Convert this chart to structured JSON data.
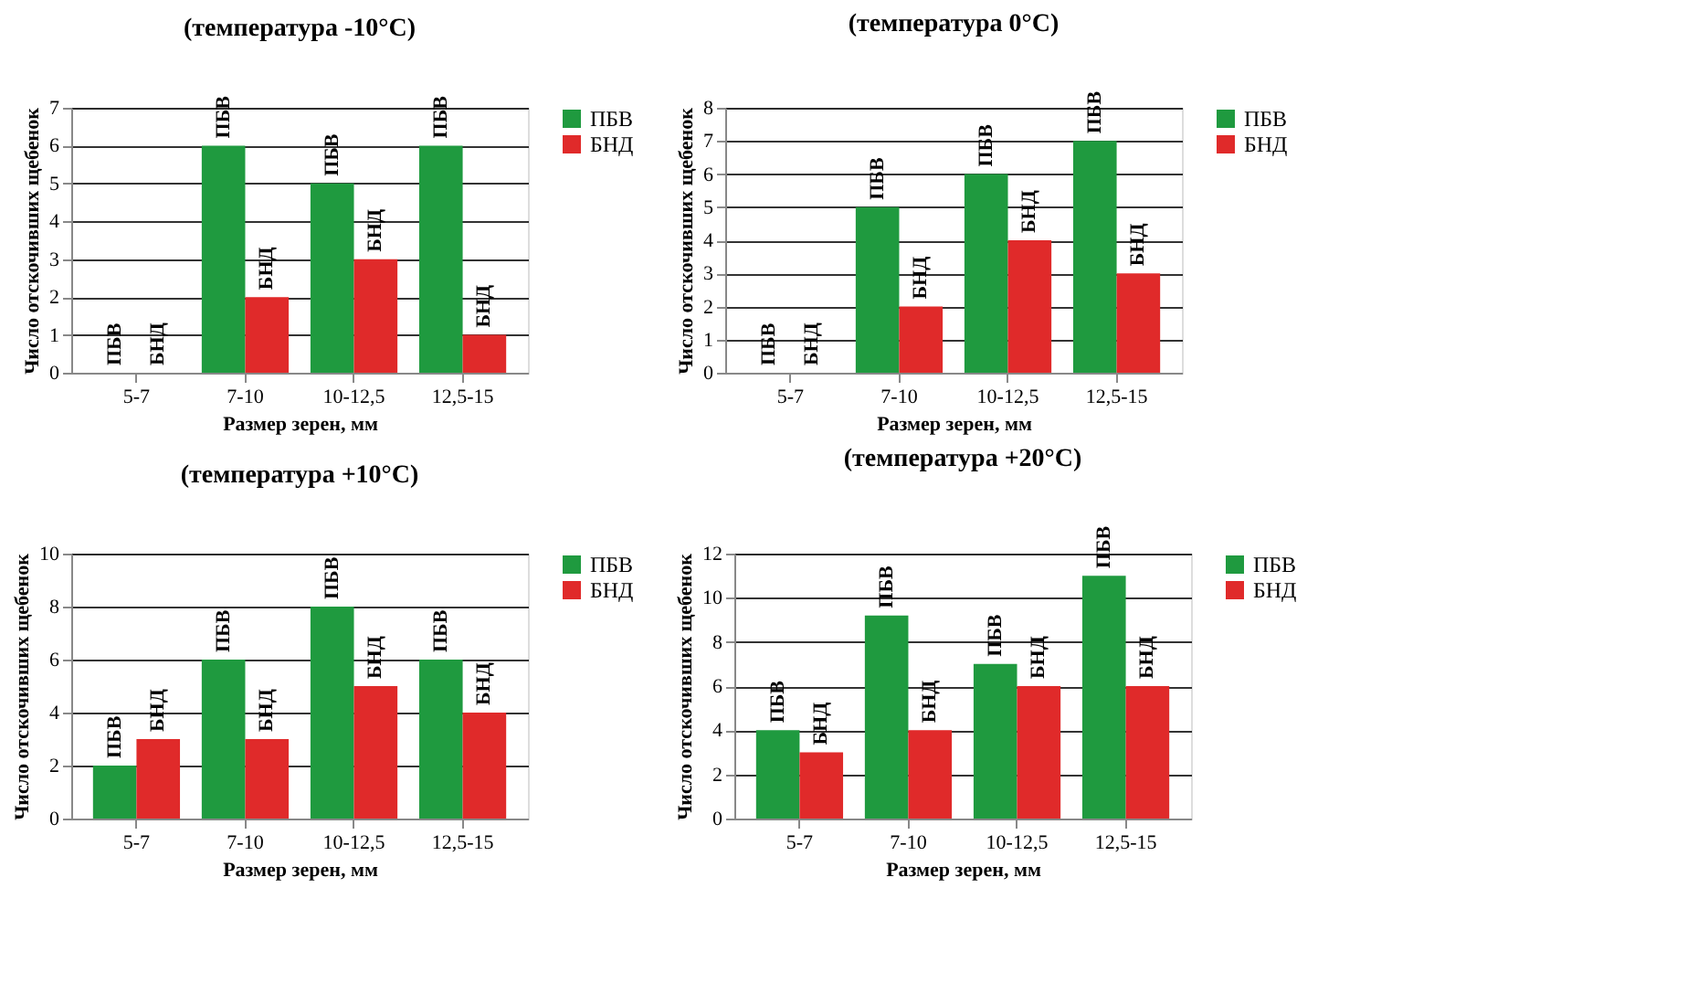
{
  "chart_data": [
    {
      "type": "bar",
      "title": "(температура -10°C)",
      "xlabel": "Размер зерен, мм",
      "ylabel": "Число отскочивших щебенок",
      "categories": [
        "5-7",
        "7-10",
        "10-12,5",
        "12,5-15"
      ],
      "series": [
        {
          "name": "ПБВ",
          "color": "#1f9a3f",
          "values": [
            0,
            6,
            5,
            6
          ]
        },
        {
          "name": "БНД",
          "color": "#e02a2a",
          "values": [
            0,
            2,
            3,
            1
          ]
        }
      ],
      "ylim": [
        0,
        7
      ],
      "yticks": [
        0,
        1,
        2,
        3,
        4,
        5,
        6,
        7
      ],
      "grid": "y",
      "legend": "right"
    },
    {
      "type": "bar",
      "title": "(температура 0°C)",
      "xlabel": "Размер зерен, мм",
      "ylabel": "Число отскочивших щебенок",
      "categories": [
        "5-7",
        "7-10",
        "10-12,5",
        "12,5-15"
      ],
      "series": [
        {
          "name": "ПБВ",
          "color": "#1f9a3f",
          "values": [
            0,
            5,
            6,
            7
          ]
        },
        {
          "name": "БНД",
          "color": "#e02a2a",
          "values": [
            0,
            2,
            4,
            3
          ]
        }
      ],
      "ylim": [
        0,
        8
      ],
      "yticks": [
        0,
        1,
        2,
        3,
        4,
        5,
        6,
        7,
        8
      ],
      "grid": "y",
      "legend": "right"
    },
    {
      "type": "bar",
      "title": "(температура +10°C)",
      "xlabel": "Размер зерен, мм",
      "ylabel": "Число отскочивших щебенок",
      "categories": [
        "5-7",
        "7-10",
        "10-12,5",
        "12,5-15"
      ],
      "series": [
        {
          "name": "ПБВ",
          "color": "#1f9a3f",
          "values": [
            2,
            6,
            8,
            6
          ]
        },
        {
          "name": "БНД",
          "color": "#e02a2a",
          "values": [
            3,
            3,
            5,
            4
          ]
        }
      ],
      "ylim": [
        0,
        10
      ],
      "yticks": [
        0,
        2,
        4,
        6,
        8,
        10
      ],
      "grid": "y",
      "legend": "right"
    },
    {
      "type": "bar",
      "title": "(температура +20°C)",
      "xlabel": "Размер зерен, мм",
      "ylabel": "Число отскочивших щебенок",
      "categories": [
        "5-7",
        "7-10",
        "10-12,5",
        "12,5-15"
      ],
      "series": [
        {
          "name": "ПБВ",
          "color": "#1f9a3f",
          "values": [
            4,
            9.2,
            7,
            11
          ]
        },
        {
          "name": "БНД",
          "color": "#e02a2a",
          "values": [
            3,
            4,
            6,
            6
          ]
        }
      ],
      "ylim": [
        0,
        12
      ],
      "yticks": [
        0,
        2,
        4,
        6,
        8,
        10,
        12
      ],
      "grid": "y",
      "legend": "right"
    }
  ]
}
